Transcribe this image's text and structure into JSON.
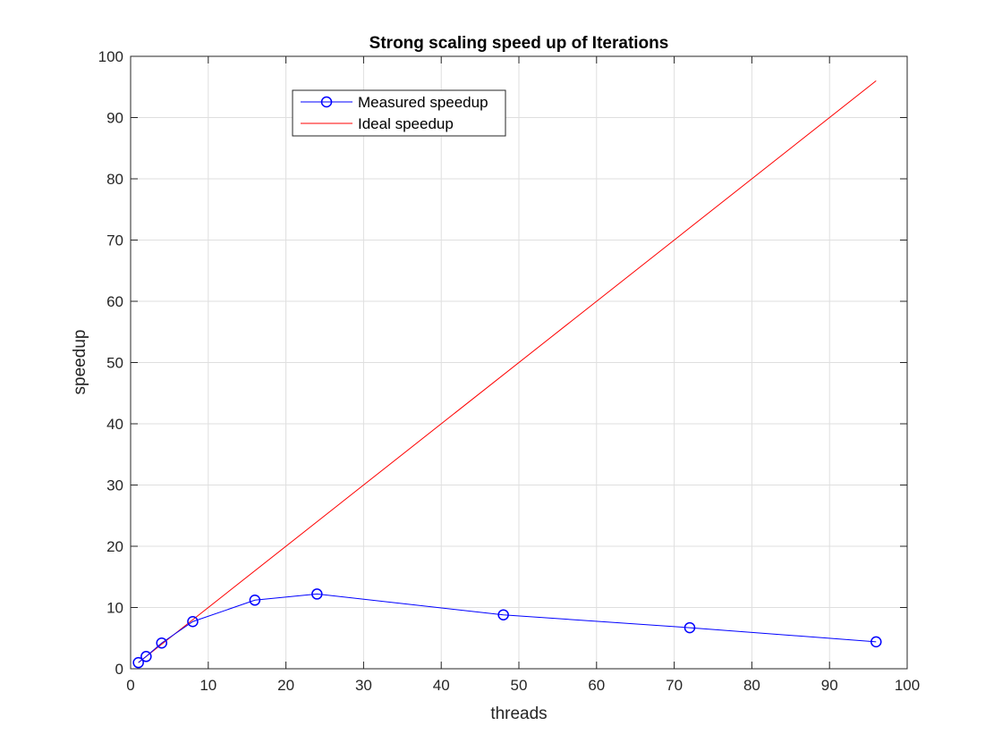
{
  "chart_data": {
    "type": "line",
    "title": "Strong scaling speed up of Iterations",
    "xlabel": "threads",
    "ylabel": "speedup",
    "xlim": [
      0,
      100
    ],
    "ylim": [
      0,
      100
    ],
    "xticks": [
      "0",
      "10",
      "20",
      "30",
      "40",
      "50",
      "60",
      "70",
      "80",
      "90",
      "100"
    ],
    "yticks": [
      "0",
      "10",
      "20",
      "30",
      "40",
      "50",
      "60",
      "70",
      "80",
      "90",
      "100"
    ],
    "grid": true,
    "legend_position": "top-left-inside",
    "series": [
      {
        "name": "Measured speedup",
        "color": "#0000ff",
        "marker": "circle",
        "x": [
          1,
          2,
          4,
          8,
          16,
          24,
          48,
          72,
          96
        ],
        "y": [
          1,
          2,
          4.2,
          7.7,
          11.2,
          12.2,
          8.8,
          6.7,
          4.4
        ]
      },
      {
        "name": "Ideal speedup",
        "color": "#ff0000",
        "marker": "none",
        "x": [
          1,
          96
        ],
        "y": [
          1,
          96
        ]
      }
    ]
  }
}
